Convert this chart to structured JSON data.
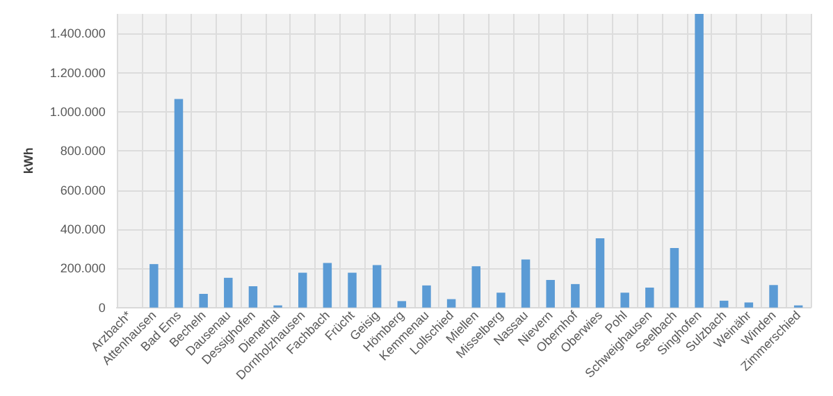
{
  "chart_data": {
    "type": "bar",
    "ylabel": "kWh",
    "categories": [
      "Arzbach*",
      "Attenhausen",
      "Bad Ems",
      "Becheln",
      "Dausenau",
      "Dessighofen",
      "Dienethal",
      "Dornholzhausen",
      "Fachbach",
      "Frücht",
      "Geisig",
      "Hömberg",
      "Kemmenau",
      "Lollschied",
      "Miellen",
      "Misselberg",
      "Nassau",
      "Nievern",
      "Obernhof",
      "Oberwies",
      "Pohl",
      "Schweighausen",
      "Seelbach",
      "Singhofen",
      "Sulzbach",
      "Weinähr",
      "Winden",
      "Zimmerschied"
    ],
    "values": [
      null,
      222000,
      1065000,
      70000,
      152000,
      109000,
      11000,
      178000,
      228000,
      178000,
      217000,
      33000,
      113000,
      43000,
      211000,
      76000,
      246000,
      141000,
      120000,
      354000,
      76000,
      102000,
      304000,
      1500000,
      35000,
      26000,
      115000,
      11000
    ],
    "color": "#5b9bd5",
    "ylim": [
      0,
      1500000
    ],
    "yticks": [
      {
        "value": 0,
        "label": "0"
      },
      {
        "value": 200000,
        "label": "200.000"
      },
      {
        "value": 400000,
        "label": "400.000"
      },
      {
        "value": 600000,
        "label": "600.000"
      },
      {
        "value": 800000,
        "label": "800.000"
      },
      {
        "value": 1000000,
        "label": "1.000.000"
      },
      {
        "value": 1200000,
        "label": "1.200.000"
      },
      {
        "value": 1400000,
        "label": "1.400.000"
      }
    ],
    "grid": true
  }
}
